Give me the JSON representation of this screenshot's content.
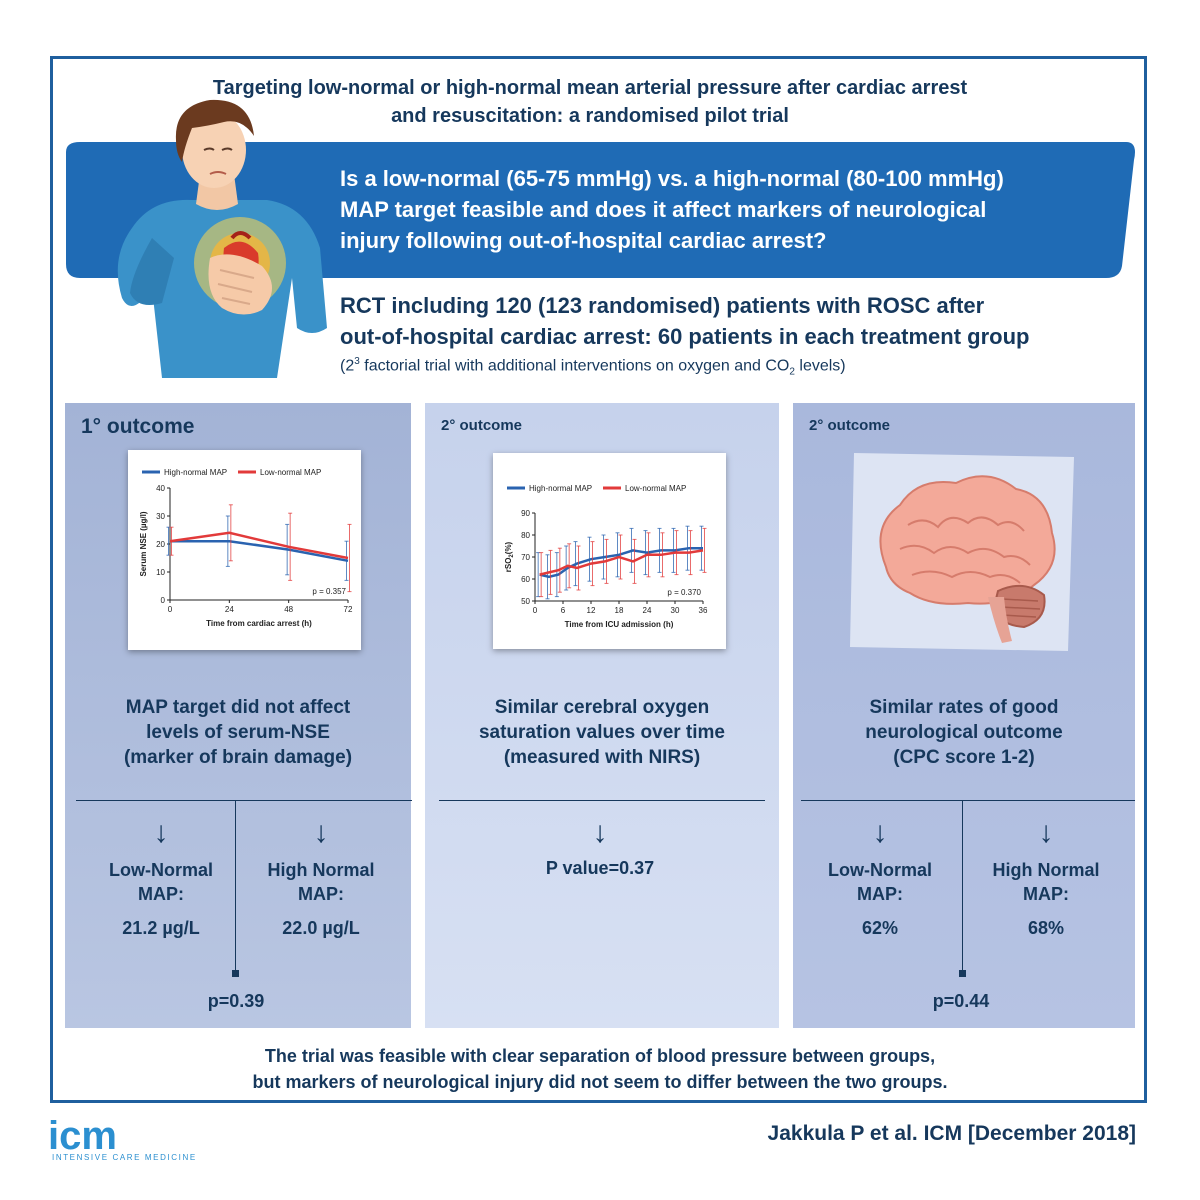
{
  "title": {
    "line1": "Targeting low-normal or high-normal mean arterial pressure after cardiac arrest",
    "line2": "and resuscitation: a randomised pilot trial"
  },
  "question": {
    "line1": "Is a low-normal (65-75 mmHg) vs. a high-normal (80-100 mmHg)",
    "line2": "MAP target feasible and does it affect markers of neurological",
    "line3": "injury following out-of-hospital cardiac arrest?"
  },
  "design": {
    "line1": "RCT including 120 (123 randomised) patients with ROSC after",
    "line2": "out-of-hospital cardiac arrest: 60 patients in each treatment group",
    "note_pre": "(2",
    "note_sup": "3",
    "note_mid": " factorial trial with additional interventions on oxygen and CO",
    "note_sub": "2",
    "note_post": " levels)"
  },
  "panels": [
    {
      "tag": "1° outcome",
      "finding": [
        "MAP target did not affect",
        "levels of serum-NSE",
        "(marker of brain damage)"
      ],
      "low_label": [
        "Low-Normal",
        "MAP:"
      ],
      "high_label": [
        "High Normal",
        "MAP:"
      ],
      "low_value": "21.2 µg/L",
      "high_value": "22.0 µg/L",
      "p_value": "p=0.39"
    },
    {
      "tag": "2° outcome",
      "finding": [
        "Similar cerebral oxygen",
        "saturation values over time",
        "(measured with NIRS)"
      ],
      "p_value": "P value=0.37"
    },
    {
      "tag": "2° outcome",
      "finding": [
        "Similar rates of good",
        "neurological outcome",
        "(CPC score 1-2)"
      ],
      "low_label": [
        "Low-Normal",
        "MAP:"
      ],
      "high_label": [
        "High Normal",
        "MAP:"
      ],
      "low_value": "62%",
      "high_value": "68%",
      "p_value": "p=0.44"
    }
  ],
  "chart_data": [
    {
      "type": "line",
      "xlabel": "Time from cardiac arrest (h)",
      "ylabel": "Serum NSE (µg/l)",
      "xlim": [
        0,
        72
      ],
      "ylim": [
        0,
        40
      ],
      "xticks": [
        "0",
        "24",
        "48",
        "72"
      ],
      "yticks": [
        "0",
        "10",
        "20",
        "30",
        "40"
      ],
      "legend_position": "top",
      "annotation": "p = 0.357",
      "series": [
        {
          "name": "High-normal MAP",
          "color": "#2a63b0",
          "x": [
            0,
            24,
            48,
            72
          ],
          "y": [
            21,
            21,
            18,
            14
          ],
          "err": [
            5,
            9,
            9,
            7
          ]
        },
        {
          "name": "Low-normal MAP",
          "color": "#e23a3a",
          "x": [
            0,
            24,
            48,
            72
          ],
          "y": [
            21,
            24,
            19,
            15
          ],
          "err": [
            5,
            10,
            12,
            12
          ]
        }
      ]
    },
    {
      "type": "line",
      "xlabel": "Time from ICU admission (h)",
      "ylabel": "rSO2(%)",
      "xlim": [
        0,
        36
      ],
      "ylim": [
        50,
        90
      ],
      "xticks": [
        "0",
        "6",
        "12",
        "18",
        "24",
        "30",
        "36"
      ],
      "yticks": [
        "50",
        "60",
        "70",
        "80",
        "90"
      ],
      "legend_position": "top",
      "annotation": "p = 0.370",
      "series": [
        {
          "name": "High-normal MAP",
          "color": "#2a63b0",
          "x": [
            1,
            3,
            5,
            7,
            9,
            12,
            15,
            18,
            21,
            24,
            27,
            30,
            33,
            36
          ],
          "y": [
            62,
            61,
            62,
            65,
            67,
            69,
            70,
            71,
            73,
            72,
            73,
            73,
            74,
            74
          ],
          "err": 10
        },
        {
          "name": "Low-normal MAP",
          "color": "#e23a3a",
          "x": [
            1,
            3,
            5,
            7,
            9,
            12,
            15,
            18,
            21,
            24,
            27,
            30,
            33,
            36
          ],
          "y": [
            62,
            63,
            64,
            66,
            65,
            67,
            68,
            70,
            68,
            71,
            71,
            72,
            72,
            73
          ],
          "err": 10
        }
      ]
    }
  ],
  "conclusion": {
    "line1": "The trial was feasible with clear separation of blood pressure between groups,",
    "line2": "but markers of neurological injury did not seem to differ between the two groups."
  },
  "logo": {
    "mark": "icm",
    "subtitle": "INTENSIVE CARE MEDICINE"
  },
  "citation": "Jakkula P et al. ICM [December 2018]",
  "colors": {
    "dark_blue": "#16385c",
    "banner_blue": "#1f6bb5",
    "frame_blue": "#1f5f9e",
    "high_series": "#2a63b0",
    "low_series": "#e23a3a"
  }
}
